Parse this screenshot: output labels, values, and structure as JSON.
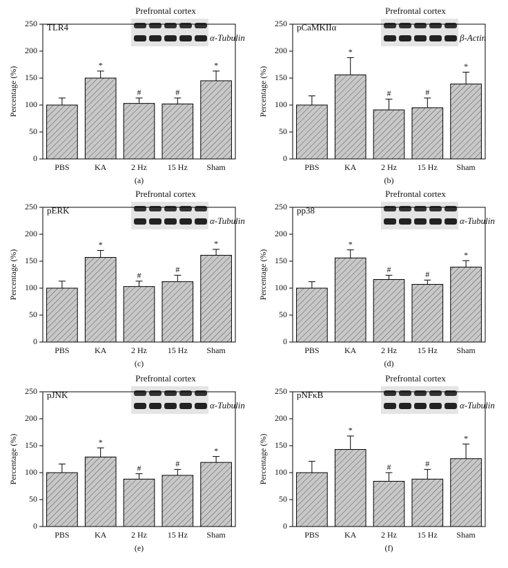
{
  "chart_data": [
    {
      "type": "bar",
      "title": "Prefrontal cortex",
      "label": "TLR4",
      "loading_control": "α-Tubulin",
      "ylabel": "Percentage (%)",
      "caption": "(a)",
      "color": "#c8c8c8",
      "categories": [
        "PBS",
        "KA",
        "2 Hz",
        "15 Hz",
        "Sham"
      ],
      "values": [
        100,
        150,
        103,
        102,
        145
      ],
      "errors": [
        13,
        13,
        10,
        11,
        18
      ],
      "markers": [
        null,
        "*",
        "#",
        "#",
        "*"
      ],
      "ylim": [
        0,
        250
      ],
      "yticks": [
        0,
        50,
        100,
        150,
        200,
        250
      ]
    },
    {
      "type": "bar",
      "title": "Prefrontal cortex",
      "label": "pCaMKIIα",
      "loading_control": "β-Actin",
      "ylabel": "Percentage (%)",
      "caption": "(b)",
      "color": "#c8c8c8",
      "categories": [
        "PBS",
        "KA",
        "2 Hz",
        "15 Hz",
        "Sham"
      ],
      "values": [
        100,
        156,
        91,
        95,
        139
      ],
      "errors": [
        17,
        32,
        20,
        18,
        22
      ],
      "markers": [
        null,
        "*",
        "#",
        "#",
        "*"
      ],
      "ylim": [
        0,
        250
      ],
      "yticks": [
        0,
        50,
        100,
        150,
        200,
        250
      ]
    },
    {
      "type": "bar",
      "title": "Prefrontal cortex",
      "label": "pERK",
      "loading_control": "α-Tubulin",
      "ylabel": "Percentage (%)",
      "caption": "(c)",
      "color": "#c8c8c8",
      "categories": [
        "PBS",
        "KA",
        "2 Hz",
        "15 Hz",
        "Sham"
      ],
      "values": [
        100,
        157,
        103,
        112,
        161
      ],
      "errors": [
        13,
        13,
        10,
        12,
        11
      ],
      "markers": [
        null,
        "*",
        "#",
        "#",
        "*"
      ],
      "ylim": [
        0,
        250
      ],
      "yticks": [
        0,
        50,
        100,
        150,
        200,
        250
      ]
    },
    {
      "type": "bar",
      "title": "Prefrontal cortex",
      "label": "pp38",
      "loading_control": "α-Tubulin",
      "ylabel": "Percentage (%)",
      "caption": "(d)",
      "color": "#c8c8c8",
      "categories": [
        "PBS",
        "KA",
        "2 Hz",
        "15 Hz",
        "Sham"
      ],
      "values": [
        100,
        156,
        116,
        107,
        139
      ],
      "errors": [
        12,
        15,
        8,
        8,
        12
      ],
      "markers": [
        null,
        "*",
        "#",
        "#",
        "*"
      ],
      "ylim": [
        0,
        250
      ],
      "yticks": [
        0,
        50,
        100,
        150,
        200,
        250
      ]
    },
    {
      "type": "bar",
      "title": "Prefrontal cortex",
      "label": "pJNK",
      "loading_control": "α-Tubulin",
      "ylabel": "Percentage (%)",
      "caption": "(e)",
      "color": "#c8c8c8",
      "categories": [
        "PBS",
        "KA",
        "2 Hz",
        "15 Hz",
        "Sham"
      ],
      "values": [
        100,
        129,
        88,
        95,
        119
      ],
      "errors": [
        16,
        17,
        10,
        11,
        11
      ],
      "markers": [
        null,
        "*",
        "#",
        "#",
        "*"
      ],
      "ylim": [
        0,
        250
      ],
      "yticks": [
        0,
        50,
        100,
        150,
        200,
        250
      ]
    },
    {
      "type": "bar",
      "title": "Prefrontal cortex",
      "label": "pNFκB",
      "loading_control": "α-Tubulin",
      "ylabel": "Percentage (%)",
      "caption": "(f)",
      "color": "#c8c8c8",
      "categories": [
        "PBS",
        "KA",
        "2 Hz",
        "15 Hz",
        "Sham"
      ],
      "values": [
        100,
        143,
        84,
        88,
        126
      ],
      "errors": [
        21,
        25,
        16,
        18,
        27
      ],
      "markers": [
        null,
        "*",
        "#",
        "#",
        "*"
      ],
      "ylim": [
        0,
        250
      ],
      "yticks": [
        0,
        50,
        100,
        150,
        200,
        250
      ]
    }
  ]
}
